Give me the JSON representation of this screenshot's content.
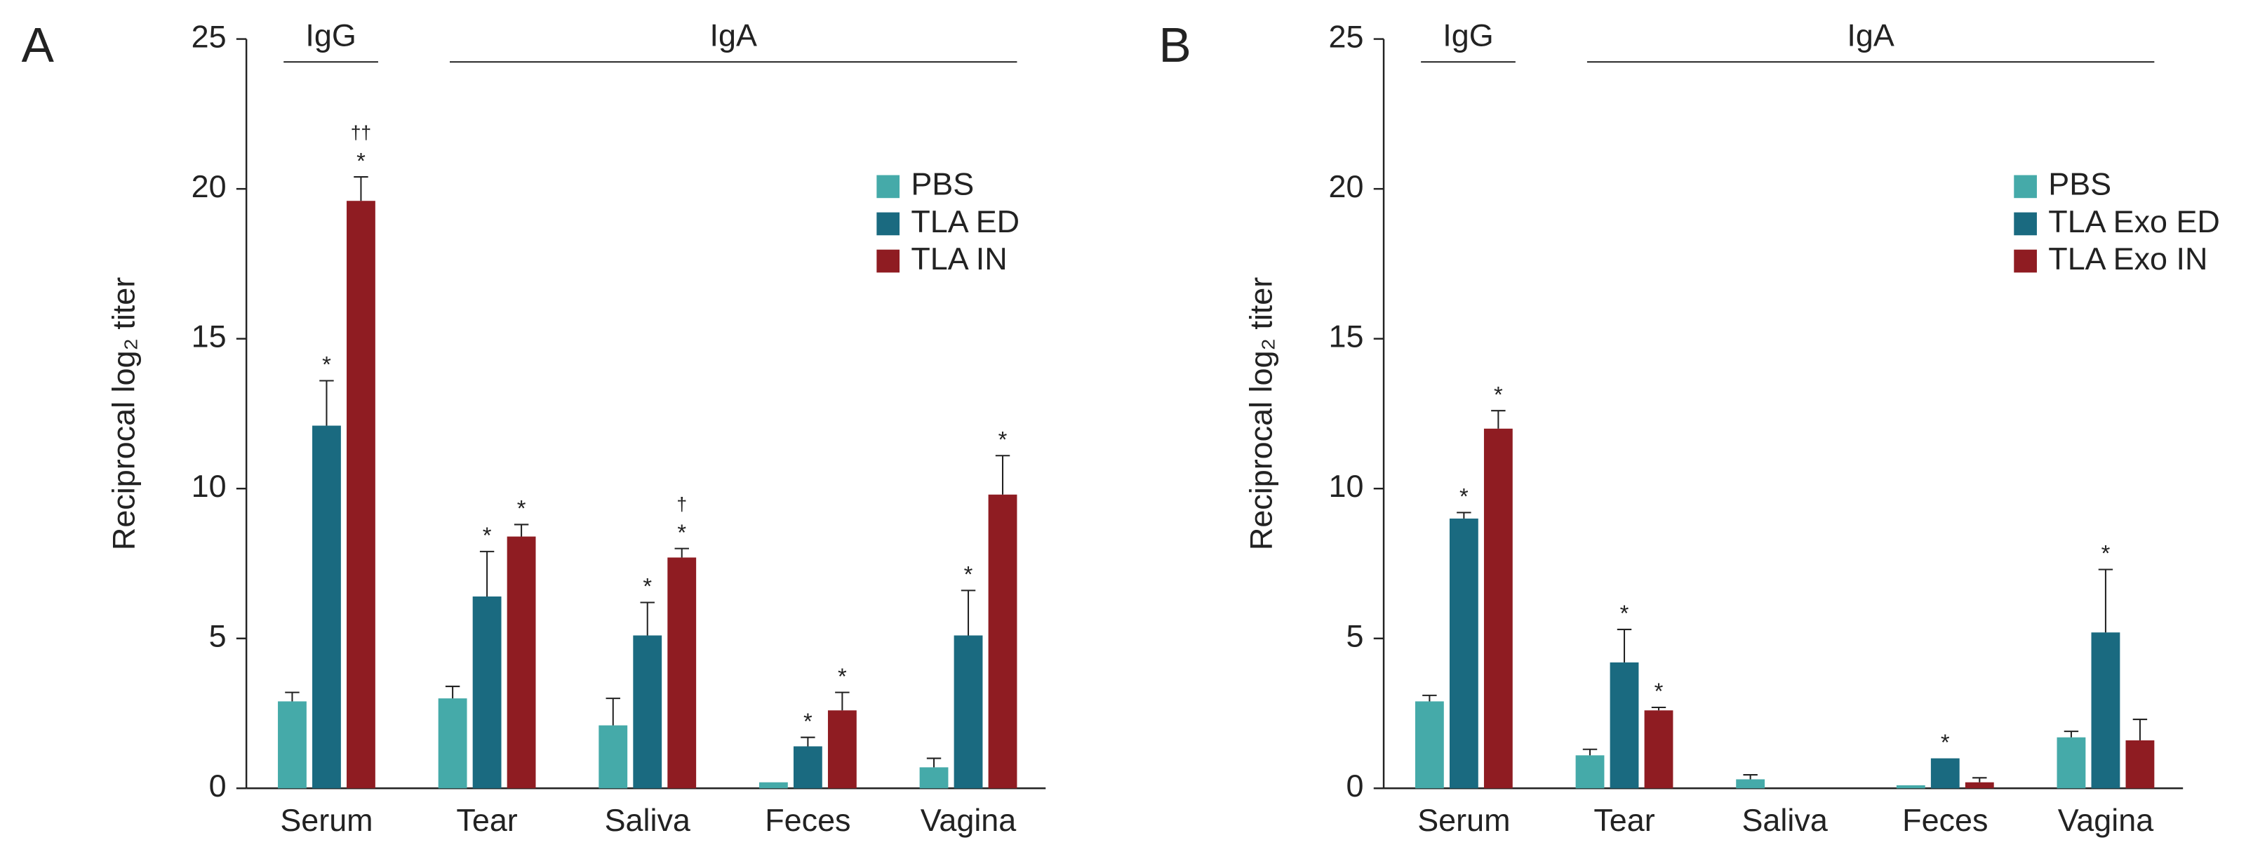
{
  "chart_data": [
    {
      "type": "bar",
      "panel_label": "A",
      "ylabel": "Reciprocal log₂ titer",
      "categories": [
        "Serum",
        "Tear",
        "Saliva",
        "Feces",
        "Vagina"
      ],
      "groups": [
        {
          "label": "IgG",
          "span": [
            0,
            0
          ]
        },
        {
          "label": "IgA",
          "span": [
            1,
            4
          ]
        }
      ],
      "ylim": [
        0,
        25
      ],
      "yticks": [
        0,
        5,
        10,
        15,
        20,
        25
      ],
      "series": [
        {
          "name": "PBS",
          "color": "#45aaa9",
          "values": [
            2.9,
            3.0,
            2.1,
            0.2,
            0.7
          ],
          "errors": [
            0.3,
            0.4,
            0.9,
            0,
            0.3
          ]
        },
        {
          "name": "TLA ED",
          "color": "#1a6a80",
          "values": [
            12.1,
            6.4,
            5.1,
            1.4,
            5.1
          ],
          "errors": [
            1.5,
            1.5,
            1.1,
            0.3,
            1.5
          ],
          "annotations": [
            "*",
            "*",
            "*",
            "*",
            "*"
          ]
        },
        {
          "name": "TLA IN",
          "color": "#8f1c22",
          "values": [
            19.6,
            8.4,
            7.7,
            2.6,
            9.8
          ],
          "errors": [
            0.8,
            0.4,
            0.3,
            0.6,
            1.3
          ],
          "annotations": [
            "*",
            "*",
            "*",
            "*",
            "*"
          ],
          "second_annotations": [
            "††",
            null,
            "†",
            null,
            null
          ]
        }
      ]
    },
    {
      "type": "bar",
      "panel_label": "B",
      "ylabel": "Reciprocal log₂ titer",
      "categories": [
        "Serum",
        "Tear",
        "Saliva",
        "Feces",
        "Vagina"
      ],
      "groups": [
        {
          "label": "IgG",
          "span": [
            0,
            0
          ]
        },
        {
          "label": "IgA",
          "span": [
            1,
            4
          ]
        }
      ],
      "ylim": [
        0,
        25
      ],
      "yticks": [
        0,
        5,
        10,
        15,
        20,
        25
      ],
      "series": [
        {
          "name": "PBS",
          "color": "#45aaa9",
          "values": [
            2.9,
            1.1,
            0.3,
            0.1,
            1.7
          ],
          "errors": [
            0.2,
            0.2,
            0.15,
            0,
            0.2
          ]
        },
        {
          "name": "TLA Exo ED",
          "color": "#1a6a80",
          "values": [
            9.0,
            4.2,
            0,
            1.0,
            5.2
          ],
          "errors": [
            0.2,
            1.1,
            0,
            0,
            2.1
          ],
          "annotations": [
            "*",
            "*",
            null,
            "*",
            "*"
          ]
        },
        {
          "name": "TLA Exo IN",
          "color": "#8f1c22",
          "values": [
            12.0,
            2.6,
            0,
            0.2,
            1.6
          ],
          "errors": [
            0.6,
            0.1,
            0,
            0.15,
            0.7
          ],
          "annotations": [
            "*",
            "*",
            null,
            null,
            null
          ]
        }
      ]
    }
  ]
}
